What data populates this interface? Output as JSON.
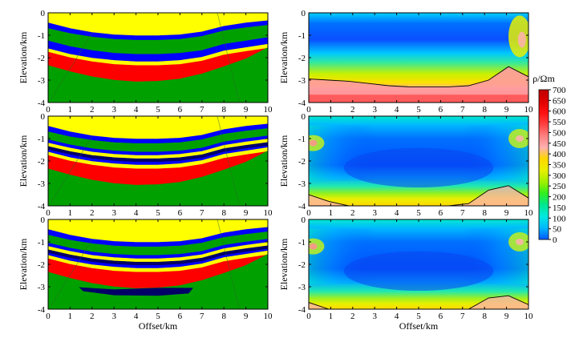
{
  "figure_caption": "",
  "chart_data": [
    {
      "id": "model-1",
      "type": "section",
      "column": "model",
      "xlabel": "",
      "ylabel": "Elevation/km",
      "xlim": [
        0,
        10
      ],
      "ylim": [
        -4,
        0
      ],
      "xticks": [
        "0",
        "1",
        "2",
        "3",
        "4",
        "5",
        "6",
        "7",
        "8",
        "9",
        "10"
      ],
      "yticks": [
        "0",
        "-1",
        "-2",
        "-3",
        "-4"
      ],
      "layers": [
        {
          "name": "top",
          "color": "#ffff00",
          "top": [
            0,
            0,
            0,
            0,
            0,
            0,
            0,
            0,
            0,
            0,
            0
          ],
          "bottom": [
            -0.45,
            -0.7,
            -0.88,
            -0.98,
            -1.02,
            -1.02,
            -0.98,
            -0.85,
            -0.6,
            -0.45,
            -0.35
          ]
        },
        {
          "name": "blue-1",
          "color": "#0000ff",
          "top": [
            -0.45,
            -0.7,
            -0.88,
            -0.98,
            -1.02,
            -1.02,
            -0.98,
            -0.85,
            -0.6,
            -0.45,
            -0.35
          ],
          "bottom": [
            -0.7,
            -0.92,
            -1.08,
            -1.18,
            -1.22,
            -1.22,
            -1.18,
            -1.05,
            -0.8,
            -0.66,
            -0.55
          ]
        },
        {
          "name": "green-1",
          "color": "#00a000",
          "top": [
            -0.7,
            -0.92,
            -1.08,
            -1.18,
            -1.22,
            -1.22,
            -1.18,
            -1.05,
            -0.8,
            -0.66,
            -0.55
          ],
          "bottom": [
            -1.25,
            -1.5,
            -1.68,
            -1.8,
            -1.85,
            -1.85,
            -1.8,
            -1.68,
            -1.4,
            -1.25,
            -1.1
          ]
        },
        {
          "name": "blue-2",
          "color": "#0000ff",
          "top": [
            -1.25,
            -1.5,
            -1.68,
            -1.8,
            -1.85,
            -1.85,
            -1.8,
            -1.68,
            -1.4,
            -1.25,
            -1.1
          ],
          "bottom": [
            -1.6,
            -1.85,
            -2.02,
            -2.12,
            -2.18,
            -2.18,
            -2.12,
            -1.98,
            -1.7,
            -1.55,
            -1.4
          ]
        },
        {
          "name": "yellow-2",
          "color": "#ffff00",
          "top": [
            -1.6,
            -1.85,
            -2.02,
            -2.12,
            -2.18,
            -2.18,
            -2.12,
            -1.98,
            -1.7,
            -1.55,
            -1.4
          ],
          "bottom": [
            -1.75,
            -2.0,
            -2.18,
            -2.3,
            -2.35,
            -2.35,
            -2.3,
            -2.15,
            -1.88,
            -1.72,
            -1.58
          ]
        },
        {
          "name": "red",
          "color": "#ff0000",
          "top": [
            -1.75,
            -2.0,
            -2.18,
            -2.3,
            -2.35,
            -2.35,
            -2.3,
            -2.15,
            -1.88,
            -1.72,
            -1.58
          ],
          "bottom": [
            -2.35,
            -2.62,
            -2.85,
            -3.0,
            -3.08,
            -3.05,
            -2.95,
            -2.72,
            -2.4,
            -2.05,
            -1.55
          ]
        },
        {
          "name": "green-bottom",
          "color": "#00a000",
          "top": [
            -2.35,
            -2.62,
            -2.85,
            -3.0,
            -3.08,
            -3.05,
            -2.95,
            -2.72,
            -2.4,
            -2.05,
            -1.55
          ],
          "bottom": [
            -4,
            -4,
            -4,
            -4,
            -4,
            -4,
            -4,
            -4,
            -4,
            -4,
            -4
          ]
        }
      ],
      "anomaly": null
    },
    {
      "id": "inversion-1",
      "type": "heatmap",
      "column": "inversion",
      "xlabel": "",
      "ylabel": "Elevation/km",
      "xlim": [
        0,
        10
      ],
      "ylim": [
        -4,
        0
      ],
      "xticks": [
        "0",
        "1",
        "2",
        "3",
        "4",
        "5",
        "6",
        "7",
        "8",
        "9",
        "10"
      ],
      "yticks": [
        "0",
        "-1",
        "-2",
        "-3",
        "-4"
      ],
      "contour": [
        -2.95,
        -3.0,
        -3.05,
        -3.15,
        -3.25,
        -3.3,
        -3.3,
        -3.3,
        -3.25,
        -3.0,
        -2.4,
        -2.85
      ]
    },
    {
      "id": "model-2",
      "type": "section",
      "column": "model",
      "xlabel": "",
      "ylabel": "Elevation/km",
      "xlim": [
        0,
        10
      ],
      "ylim": [
        -4,
        0
      ],
      "xticks": [
        "0",
        "1",
        "2",
        "3",
        "4",
        "5",
        "6",
        "7",
        "8",
        "9",
        "10"
      ],
      "yticks": [
        "0",
        "-1",
        "-2",
        "-3",
        "-4"
      ],
      "layers": [
        {
          "name": "top",
          "color": "#ffff00",
          "top": [
            0,
            0,
            0,
            0,
            0,
            0,
            0,
            0,
            0,
            0,
            0
          ],
          "bottom": [
            -0.45,
            -0.7,
            -0.88,
            -0.98,
            -1.02,
            -1.02,
            -0.98,
            -0.85,
            -0.6,
            -0.45,
            -0.35
          ]
        },
        {
          "name": "blue-1",
          "color": "#0000ff",
          "top": [
            -0.45,
            -0.7,
            -0.88,
            -0.98,
            -1.02,
            -1.02,
            -0.98,
            -0.85,
            -0.6,
            -0.45,
            -0.35
          ],
          "bottom": [
            -0.7,
            -0.92,
            -1.08,
            -1.18,
            -1.22,
            -1.22,
            -1.18,
            -1.05,
            -0.8,
            -0.66,
            -0.55
          ]
        },
        {
          "name": "green-1",
          "color": "#00a000",
          "top": [
            -0.7,
            -0.92,
            -1.08,
            -1.18,
            -1.22,
            -1.22,
            -1.18,
            -1.05,
            -0.8,
            -0.66,
            -0.55
          ],
          "bottom": [
            -1.05,
            -1.28,
            -1.45,
            -1.55,
            -1.6,
            -1.6,
            -1.55,
            -1.42,
            -1.15,
            -1.0,
            -0.88
          ]
        },
        {
          "name": "blue-2",
          "color": "#0000ff",
          "top": [
            -1.05,
            -1.28,
            -1.45,
            -1.55,
            -1.6,
            -1.6,
            -1.55,
            -1.42,
            -1.15,
            -1.0,
            -0.88
          ],
          "bottom": [
            -1.2,
            -1.42,
            -1.6,
            -1.7,
            -1.75,
            -1.75,
            -1.7,
            -1.57,
            -1.3,
            -1.15,
            -1.02
          ]
        },
        {
          "name": "yellow-2",
          "color": "#ffff00",
          "top": [
            -1.2,
            -1.42,
            -1.6,
            -1.7,
            -1.75,
            -1.75,
            -1.7,
            -1.57,
            -1.3,
            -1.15,
            -1.02
          ],
          "bottom": [
            -1.35,
            -1.58,
            -1.75,
            -1.85,
            -1.9,
            -1.9,
            -1.85,
            -1.72,
            -1.45,
            -1.3,
            -1.17
          ]
        },
        {
          "name": "navy",
          "color": "#000066",
          "top": [
            -1.35,
            -1.58,
            -1.75,
            -1.85,
            -1.9,
            -1.9,
            -1.85,
            -1.72,
            -1.45,
            -1.3,
            -1.17
          ],
          "bottom": [
            -1.5,
            -1.72,
            -1.9,
            -2.0,
            -2.05,
            -2.05,
            -2.0,
            -1.87,
            -1.6,
            -1.45,
            -1.32
          ]
        },
        {
          "name": "blue-3",
          "color": "#0000ff",
          "top": [
            -1.5,
            -1.72,
            -1.9,
            -2.0,
            -2.05,
            -2.05,
            -2.0,
            -1.87,
            -1.6,
            -1.45,
            -1.32
          ],
          "bottom": [
            -1.6,
            -1.85,
            -2.02,
            -2.12,
            -2.18,
            -2.18,
            -2.12,
            -1.98,
            -1.7,
            -1.55,
            -1.4
          ]
        },
        {
          "name": "yellow-3",
          "color": "#ffff00",
          "top": [
            -1.6,
            -1.85,
            -2.02,
            -2.12,
            -2.18,
            -2.18,
            -2.12,
            -1.98,
            -1.7,
            -1.55,
            -1.4
          ],
          "bottom": [
            -1.75,
            -2.0,
            -2.18,
            -2.3,
            -2.35,
            -2.35,
            -2.3,
            -2.15,
            -1.88,
            -1.72,
            -1.58
          ]
        },
        {
          "name": "red",
          "color": "#ff0000",
          "top": [
            -1.75,
            -2.0,
            -2.18,
            -2.3,
            -2.35,
            -2.35,
            -2.3,
            -2.15,
            -1.88,
            -1.72,
            -1.58
          ],
          "bottom": [
            -2.35,
            -2.62,
            -2.85,
            -3.0,
            -3.08,
            -3.05,
            -2.95,
            -2.72,
            -2.4,
            -2.05,
            -1.55
          ]
        },
        {
          "name": "green-bottom",
          "color": "#00a000",
          "top": [
            -2.35,
            -2.62,
            -2.85,
            -3.0,
            -3.08,
            -3.05,
            -2.95,
            -2.72,
            -2.4,
            -2.05,
            -1.55
          ],
          "bottom": [
            -4,
            -4,
            -4,
            -4,
            -4,
            -4,
            -4,
            -4,
            -4,
            -4,
            -4
          ]
        }
      ],
      "anomaly": null
    },
    {
      "id": "inversion-2",
      "type": "heatmap",
      "column": "inversion",
      "xlabel": "",
      "ylabel": "Elevation/km",
      "xlim": [
        0,
        10
      ],
      "ylim": [
        -4,
        0
      ],
      "xticks": [
        "0",
        "1",
        "2",
        "3",
        "4",
        "5",
        "6",
        "7",
        "8",
        "9",
        "10"
      ],
      "yticks": [
        "0",
        "-1",
        "-2",
        "-3",
        "-4"
      ],
      "contour": [
        -3.5,
        -3.8,
        -4.0,
        -4.0,
        -4.0,
        -4.0,
        -4.0,
        -4.0,
        -3.9,
        -3.3,
        -3.1,
        -3.65
      ]
    },
    {
      "id": "model-3",
      "type": "section",
      "column": "model",
      "xlabel": "Offset/km",
      "ylabel": "Elevation/km",
      "xlim": [
        0,
        10
      ],
      "ylim": [
        -4,
        0
      ],
      "xticks": [
        "0",
        "1",
        "2",
        "3",
        "4",
        "5",
        "6",
        "7",
        "8",
        "9",
        "10"
      ],
      "yticks": [
        "0",
        "-1",
        "-2",
        "-3",
        "-4"
      ],
      "layers": [
        {
          "name": "top",
          "color": "#ffff00",
          "top": [
            0,
            0,
            0,
            0,
            0,
            0,
            0,
            0,
            0,
            0,
            0
          ],
          "bottom": [
            -0.45,
            -0.7,
            -0.88,
            -0.98,
            -1.02,
            -1.02,
            -0.98,
            -0.85,
            -0.6,
            -0.45,
            -0.35
          ]
        },
        {
          "name": "blue-1",
          "color": "#0000ff",
          "top": [
            -0.45,
            -0.7,
            -0.88,
            -0.98,
            -1.02,
            -1.02,
            -0.98,
            -0.85,
            -0.6,
            -0.45,
            -0.35
          ],
          "bottom": [
            -0.7,
            -0.92,
            -1.08,
            -1.18,
            -1.22,
            -1.22,
            -1.18,
            -1.05,
            -0.8,
            -0.66,
            -0.55
          ]
        },
        {
          "name": "green-1",
          "color": "#00a000",
          "top": [
            -0.7,
            -0.92,
            -1.08,
            -1.18,
            -1.22,
            -1.22,
            -1.18,
            -1.05,
            -0.8,
            -0.66,
            -0.55
          ],
          "bottom": [
            -1.05,
            -1.28,
            -1.45,
            -1.55,
            -1.6,
            -1.6,
            -1.55,
            -1.42,
            -1.15,
            -1.0,
            -0.88
          ]
        },
        {
          "name": "blue-2",
          "color": "#0000ff",
          "top": [
            -1.05,
            -1.28,
            -1.45,
            -1.55,
            -1.6,
            -1.6,
            -1.55,
            -1.42,
            -1.15,
            -1.0,
            -0.88
          ],
          "bottom": [
            -1.2,
            -1.42,
            -1.6,
            -1.7,
            -1.75,
            -1.75,
            -1.7,
            -1.57,
            -1.3,
            -1.15,
            -1.02
          ]
        },
        {
          "name": "yellow-2",
          "color": "#ffff00",
          "top": [
            -1.2,
            -1.42,
            -1.6,
            -1.7,
            -1.75,
            -1.75,
            -1.7,
            -1.57,
            -1.3,
            -1.15,
            -1.02
          ],
          "bottom": [
            -1.35,
            -1.58,
            -1.75,
            -1.85,
            -1.9,
            -1.9,
            -1.85,
            -1.72,
            -1.45,
            -1.3,
            -1.17
          ]
        },
        {
          "name": "navy",
          "color": "#000066",
          "top": [
            -1.35,
            -1.58,
            -1.75,
            -1.85,
            -1.9,
            -1.9,
            -1.85,
            -1.72,
            -1.45,
            -1.3,
            -1.17
          ],
          "bottom": [
            -1.5,
            -1.72,
            -1.9,
            -2.0,
            -2.05,
            -2.05,
            -2.0,
            -1.87,
            -1.6,
            -1.45,
            -1.32
          ]
        },
        {
          "name": "blue-3",
          "color": "#0000ff",
          "top": [
            -1.5,
            -1.72,
            -1.9,
            -2.0,
            -2.05,
            -2.05,
            -2.0,
            -1.87,
            -1.6,
            -1.45,
            -1.32
          ],
          "bottom": [
            -1.6,
            -1.85,
            -2.02,
            -2.12,
            -2.18,
            -2.18,
            -2.12,
            -1.98,
            -1.7,
            -1.55,
            -1.4
          ]
        },
        {
          "name": "yellow-3",
          "color": "#ffff00",
          "top": [
            -1.6,
            -1.85,
            -2.02,
            -2.12,
            -2.18,
            -2.18,
            -2.12,
            -1.98,
            -1.7,
            -1.55,
            -1.4
          ],
          "bottom": [
            -1.75,
            -2.0,
            -2.18,
            -2.3,
            -2.35,
            -2.35,
            -2.3,
            -2.15,
            -1.88,
            -1.72,
            -1.58
          ]
        },
        {
          "name": "red",
          "color": "#ff0000",
          "top": [
            -1.75,
            -2.0,
            -2.18,
            -2.3,
            -2.35,
            -2.35,
            -2.3,
            -2.15,
            -1.88,
            -1.72,
            -1.58
          ],
          "bottom": [
            -2.35,
            -2.62,
            -2.85,
            -3.0,
            -3.08,
            -3.05,
            -2.95,
            -2.72,
            -2.4,
            -2.05,
            -1.55
          ]
        },
        {
          "name": "green-bottom",
          "color": "#00a000",
          "top": [
            -2.35,
            -2.62,
            -2.85,
            -3.0,
            -3.08,
            -3.05,
            -2.95,
            -2.72,
            -2.4,
            -2.05,
            -1.55
          ],
          "bottom": [
            -4,
            -4,
            -4,
            -4,
            -4,
            -4,
            -4,
            -4,
            -4,
            -4,
            -4
          ]
        }
      ],
      "anomaly": {
        "name": "low-resistivity body",
        "color": "#000066",
        "outline": [
          [
            1.4,
            -3.02
          ],
          [
            3.0,
            -3.12
          ],
          [
            5.0,
            -3.05
          ],
          [
            6.6,
            -3.05
          ],
          [
            6.4,
            -3.3
          ],
          [
            5.0,
            -3.4
          ],
          [
            3.0,
            -3.38
          ],
          [
            1.6,
            -3.2
          ]
        ]
      }
    },
    {
      "id": "inversion-3",
      "type": "heatmap",
      "column": "inversion",
      "xlabel": "Offset/km",
      "ylabel": "Elevation/km",
      "xlim": [
        0,
        10
      ],
      "ylim": [
        -4,
        0
      ],
      "xticks": [
        "0",
        "1",
        "2",
        "3",
        "4",
        "5",
        "6",
        "7",
        "8",
        "9",
        "10"
      ],
      "yticks": [
        "0",
        "-1",
        "-2",
        "-3",
        "-4"
      ],
      "contour": [
        -3.7,
        -4.0,
        -4.0,
        -4.0,
        -4.0,
        -4.0,
        -4.0,
        -4.0,
        -4.0,
        -3.5,
        -3.4,
        -3.8
      ]
    }
  ],
  "colorbar": {
    "label": "ρ/Ωm",
    "min": 0,
    "max": 700,
    "ticks": [
      "0",
      "50",
      "100",
      "150",
      "200",
      "250",
      "300",
      "350",
      "400",
      "450",
      "500",
      "550",
      "600",
      "650",
      "700"
    ],
    "colors": [
      "#0055ff",
      "#00b8ff",
      "#00e8e0",
      "#00e890",
      "#30ee20",
      "#a0f000",
      "#e8f000",
      "#ffd800",
      "#ffb0b0",
      "#ff8080",
      "#ff4040",
      "#ff1010",
      "#e00000",
      "#c00000"
    ]
  }
}
